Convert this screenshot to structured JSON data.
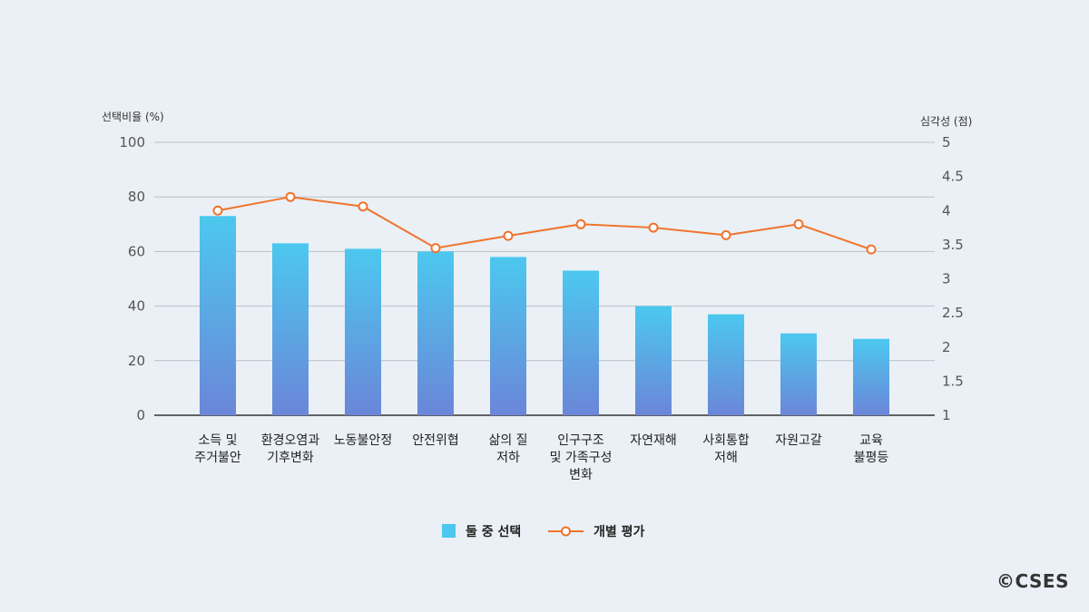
{
  "chart_data": {
    "type": "bar",
    "categories": [
      [
        "소득 및",
        "주거불안"
      ],
      [
        "환경오염과",
        "기후변화"
      ],
      [
        "노동불안정"
      ],
      [
        "안전위협"
      ],
      [
        "삶의 질",
        "저하"
      ],
      [
        "인구구조",
        "및 가족구성",
        "변화"
      ],
      [
        "자연재해"
      ],
      [
        "사회통합",
        "저해"
      ],
      [
        "자원고갈"
      ],
      [
        "교육",
        "불평등"
      ]
    ],
    "series": [
      {
        "name": "둘 중 선택",
        "type": "bar",
        "axis": "left",
        "values": [
          73,
          63,
          61,
          60,
          58,
          53,
          40,
          37,
          30,
          28
        ]
      },
      {
        "name": "개별 평가",
        "type": "line",
        "axis": "right",
        "values": [
          4.0,
          4.2,
          4.06,
          3.45,
          3.63,
          3.8,
          3.75,
          3.64,
          3.8,
          3.43
        ]
      }
    ],
    "ylabel": "선택비율 (%)",
    "y2label": "심각성 (점)",
    "ylim": [
      0,
      100
    ],
    "y2lim": [
      1,
      5
    ],
    "yticks": [
      "0",
      "20",
      "40",
      "60",
      "80",
      "100"
    ],
    "y2ticks": [
      "1",
      "1.5",
      "2",
      "2.5",
      "3",
      "3.5",
      "4",
      "4.5",
      "5"
    ],
    "grid": true,
    "legend_position": "bottom-center",
    "colors": {
      "bar_top": "#4cc8ef",
      "bar_bottom": "#6b86d8",
      "line": "#f0732c",
      "grid": "#b8c0c8",
      "axis": "#333333"
    }
  },
  "credit": "©CSES"
}
